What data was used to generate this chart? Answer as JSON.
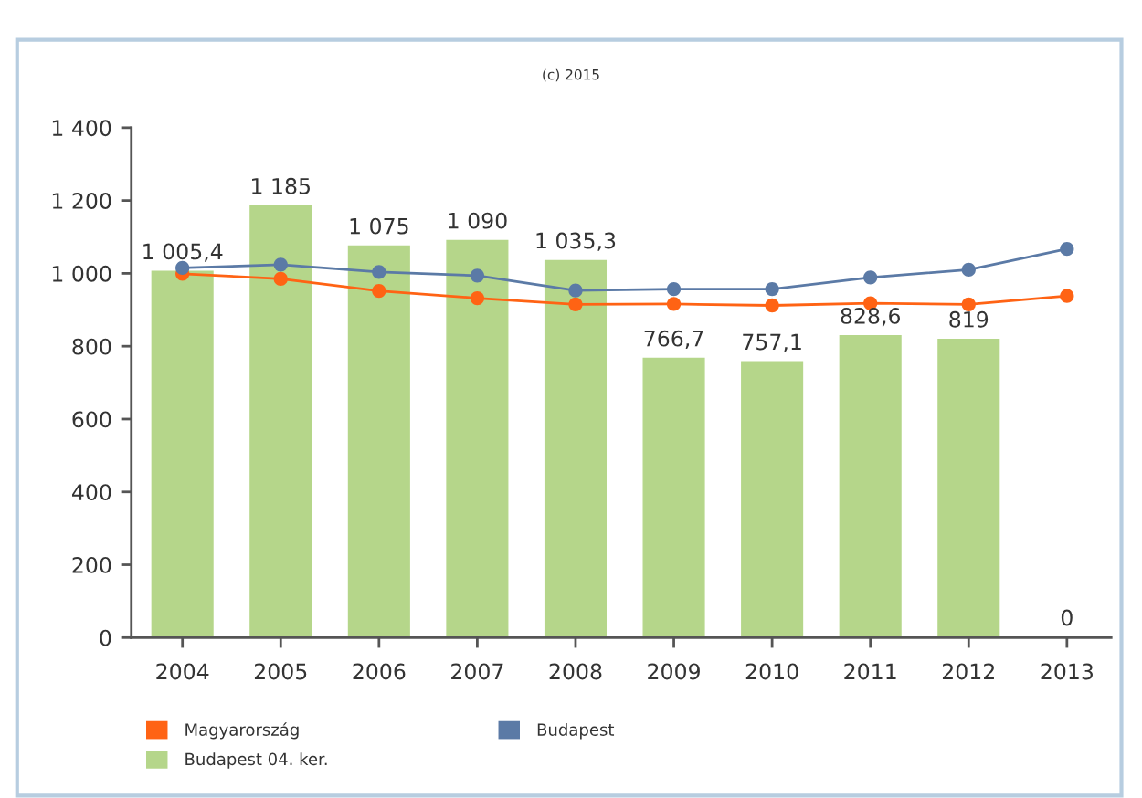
{
  "chart_data": {
    "type": "bar",
    "annotations": [
      "(c) 2015"
    ],
    "categories": [
      "2004",
      "2005",
      "2006",
      "2007",
      "2008",
      "2009",
      "2010",
      "2011",
      "2012",
      "2013"
    ],
    "series": [
      {
        "name": "Magyarország",
        "type": "line",
        "color": "#ff6314",
        "values": [
          999,
          985,
          952,
          932,
          915,
          916,
          912,
          918,
          915,
          938
        ]
      },
      {
        "name": "Budapest",
        "type": "line",
        "color": "#5b7aa6",
        "values": [
          1015,
          1024,
          1004,
          994,
          953,
          957,
          957,
          989,
          1010,
          1067
        ]
      },
      {
        "name": "Budapest 04. ker.",
        "color": "#b5d68a",
        "values": [
          1005.4,
          1185,
          1075,
          1090,
          1035.3,
          766.7,
          757.1,
          828.6,
          819,
          0
        ],
        "value_labels": [
          "1 005,4",
          "1 185",
          "1 075",
          "1 090",
          "1 035,3",
          "766,7",
          "757,1",
          "828,6",
          "819",
          "0"
        ]
      }
    ],
    "ylim": [
      0,
      1400
    ],
    "yticks": [
      0,
      200,
      400,
      600,
      800,
      {
        "value": 1000,
        "label": "1 000"
      },
      {
        "value": 1200,
        "label": "1 200"
      },
      {
        "value": 1400,
        "label": "1 400"
      }
    ],
    "marker": "circle",
    "legend": "bottom"
  }
}
